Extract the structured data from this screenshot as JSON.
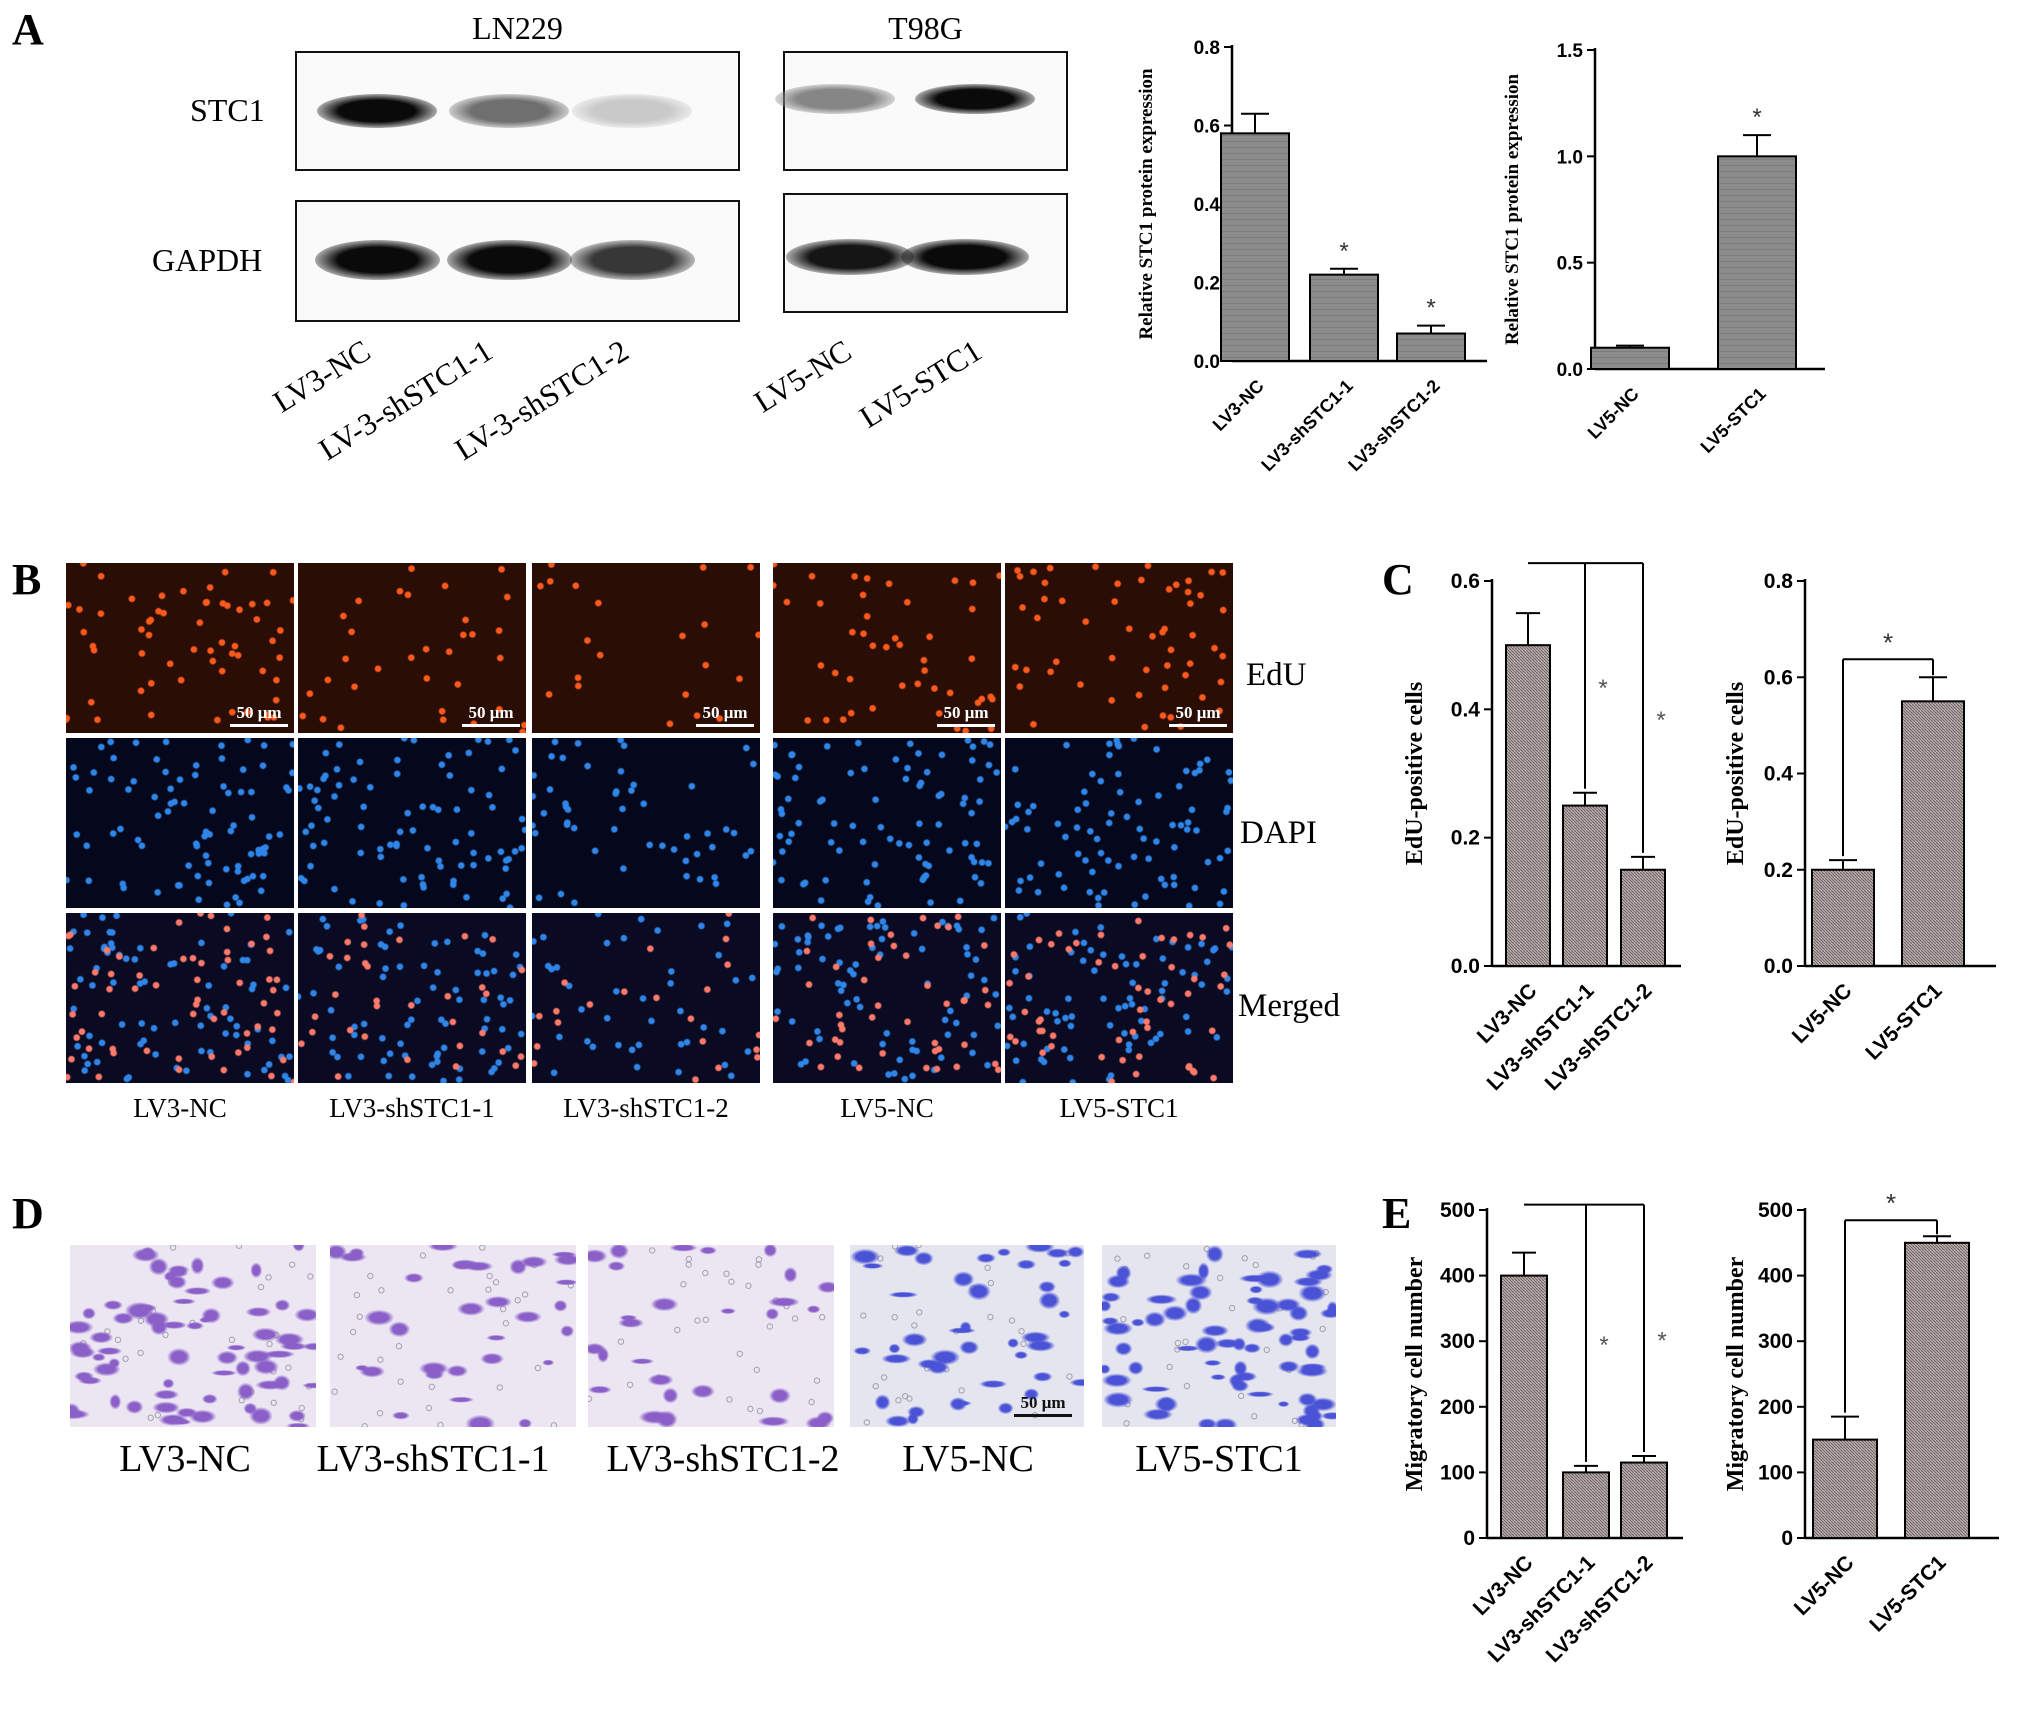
{
  "panels": {
    "A": "A",
    "B": "B",
    "C": "C",
    "D": "D",
    "E": "E"
  },
  "blots": {
    "ln229": {
      "title": "LN229",
      "lanes": [
        "LV3-NC",
        "LV-3-shSTC1-1",
        "LV-3-shSTC1-2"
      ]
    },
    "t98g": {
      "title": "T98G",
      "lanes": [
        "LV5-NC",
        "LV5-STC1"
      ]
    },
    "rows": [
      "STC1",
      "GAPDH"
    ],
    "intensity": {
      "ln229_stc1": [
        1.0,
        0.55,
        0.15
      ],
      "ln229_gapdh": [
        1.0,
        1.0,
        0.8
      ],
      "t98g_stc1": [
        0.45,
        1.0
      ],
      "t98g_gapdh": [
        0.95,
        1.0
      ]
    }
  },
  "edu_rows": [
    "EdU",
    "DAPI",
    "Merged"
  ],
  "edu_cols": [
    "LV3-NC",
    "LV3-shSTC1-1",
    "LV3-shSTC1-2",
    "LV5-NC",
    "LV5-STC1"
  ],
  "edu_scale": "50 μm",
  "edu_density": {
    "red": [
      1.0,
      0.55,
      0.35,
      0.75,
      0.9
    ],
    "blue": [
      1.0,
      1.0,
      0.6,
      1.0,
      1.0
    ]
  },
  "migration_cols": [
    "LV3-NC",
    "LV3-shSTC1-1",
    "LV3-shSTC1-2",
    "LV5-NC",
    "LV5-STC1"
  ],
  "migration_scale": "50 μm",
  "migration_density": [
    1.0,
    0.45,
    0.4,
    0.6,
    1.0
  ],
  "colors": {
    "edu": "#ff5a1e",
    "dapi": "#2f86e8",
    "stain_a": "#8a5fc8",
    "stain_b": "#4a52d6",
    "bar_a": "#8c8c8c",
    "bar_c": "#c4b6b6"
  },
  "chart_data": [
    {
      "id": "A1",
      "type": "bar",
      "categories": [
        "LV3-NC",
        "LV3-shSTC1-1",
        "LV3-shSTC1-2"
      ],
      "values": [
        0.58,
        0.22,
        0.07
      ],
      "errors": [
        0.05,
        0.015,
        0.02
      ],
      "sig": [
        "",
        "*",
        "*"
      ],
      "ylabel": "Relative STC1 protein expression",
      "ylim": [
        0,
        0.8
      ],
      "yticks": [
        0.0,
        0.2,
        0.4,
        0.6,
        0.8
      ],
      "tick_labels": [
        "0.0",
        "0.2",
        "0.4",
        "0.6",
        "0.8"
      ]
    },
    {
      "id": "A2",
      "type": "bar",
      "categories": [
        "LV5-NC",
        "LV5-STC1"
      ],
      "values": [
        0.1,
        1.0
      ],
      "errors": [
        0.01,
        0.1
      ],
      "sig": [
        "",
        "*"
      ],
      "ylabel": "Relative STC1 protein expression",
      "ylim": [
        0,
        1.5
      ],
      "yticks": [
        0.0,
        0.5,
        1.0,
        1.5
      ],
      "tick_labels": [
        "0.0",
        "0.5",
        "1.0",
        "1.5"
      ]
    },
    {
      "id": "C1",
      "type": "bar",
      "categories": [
        "LV3-NC",
        "LV3-shSTC1-1",
        "LV3-shSTC1-2"
      ],
      "values": [
        0.5,
        0.25,
        0.15
      ],
      "errors": [
        0.05,
        0.02,
        0.02
      ],
      "sig": [
        "",
        "*",
        "*"
      ],
      "ylabel": "EdU-positive cells",
      "ylim": [
        0,
        0.6
      ],
      "yticks": [
        0.0,
        0.2,
        0.4,
        0.6
      ],
      "tick_labels": [
        "0.0",
        "0.2",
        "0.4",
        "0.6"
      ]
    },
    {
      "id": "C2",
      "type": "bar",
      "categories": [
        "LV5-NC",
        "LV5-STC1"
      ],
      "values": [
        0.2,
        0.55
      ],
      "errors": [
        0.02,
        0.05
      ],
      "sig": [
        "*"
      ],
      "ylabel": "EdU-positive cells",
      "ylim": [
        0,
        0.8
      ],
      "yticks": [
        0.0,
        0.2,
        0.4,
        0.6,
        0.8
      ],
      "tick_labels": [
        "0.0",
        "0.2",
        "0.4",
        "0.6",
        "0.8"
      ]
    },
    {
      "id": "E1",
      "type": "bar",
      "categories": [
        "LV3-NC",
        "LV3-shSTC1-1",
        "LV3-shSTC1-2"
      ],
      "values": [
        400,
        100,
        115
      ],
      "errors": [
        35,
        10,
        10
      ],
      "sig": [
        "",
        "*",
        "*"
      ],
      "ylabel": "Migratory cell number",
      "ylim": [
        0,
        500
      ],
      "yticks": [
        0,
        100,
        200,
        300,
        400,
        500
      ],
      "tick_labels": [
        "0",
        "100",
        "200",
        "300",
        "400",
        "500"
      ]
    },
    {
      "id": "E2",
      "type": "bar",
      "categories": [
        "LV5-NC",
        "LV5-STC1"
      ],
      "values": [
        150,
        450
      ],
      "errors": [
        35,
        10
      ],
      "sig": [
        "*"
      ],
      "ylabel": "Migratory cell number",
      "ylim": [
        0,
        500
      ],
      "yticks": [
        0,
        100,
        200,
        300,
        400,
        500
      ],
      "tick_labels": [
        "0",
        "100",
        "200",
        "300",
        "400",
        "500"
      ]
    }
  ]
}
